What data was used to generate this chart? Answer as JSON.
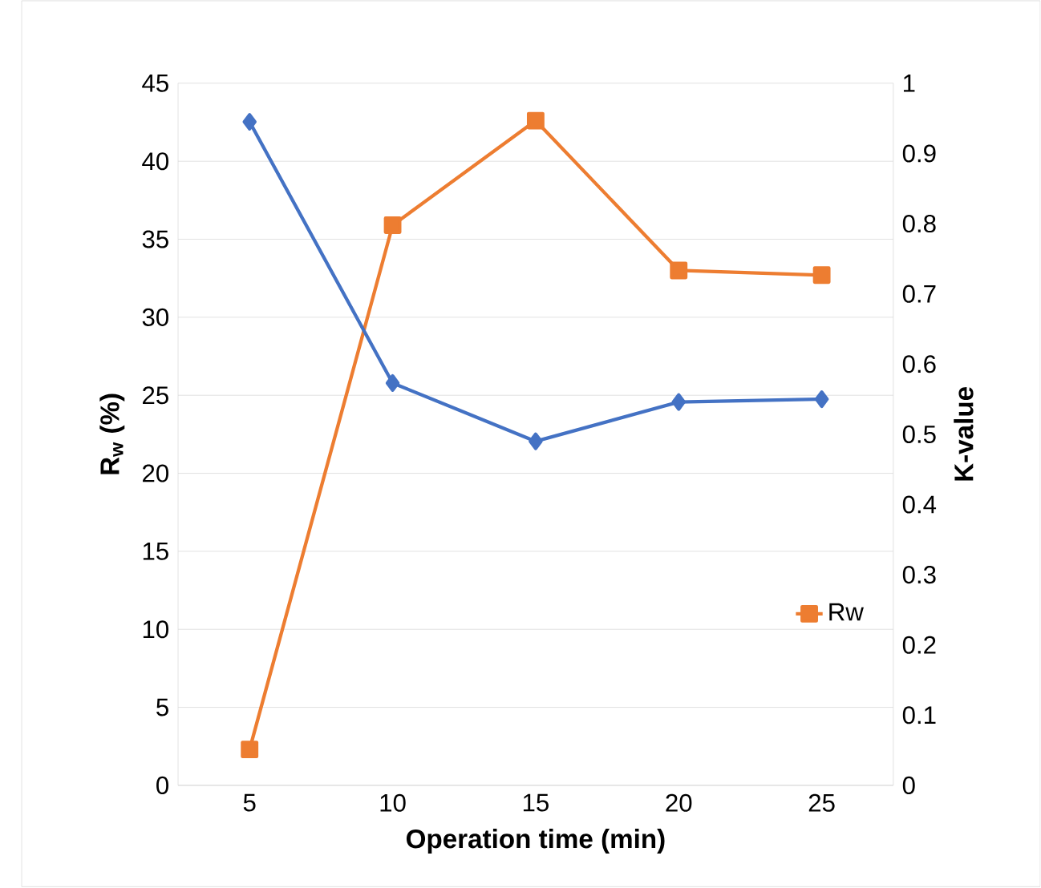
{
  "chart_data": {
    "type": "line",
    "xlabel": "Operation time (min)",
    "ylabel": "R$_{w}$ (%)",
    "y2label": "K-value",
    "categories": [
      "5",
      "10",
      "15",
      "20",
      "25"
    ],
    "series": [
      {
        "name": "Rw",
        "color": "#ed7d31",
        "marker": "square",
        "values": [
          2.3,
          35.9,
          42.6,
          33.0,
          32.7
        ]
      },
      {
        "color": "#4472c4",
        "marker": "diamond",
        "axis": "y2",
        "values": [
          0.945,
          0.573,
          0.49,
          0.546,
          0.55
        ]
      }
    ],
    "ylim": [
      0,
      45
    ],
    "yticks": [
      0,
      5,
      10,
      15,
      20,
      25,
      30,
      35,
      40,
      45
    ],
    "y2lim": [
      0,
      1
    ],
    "y2ticks": [
      0,
      0.1,
      0.2,
      0.3,
      0.4,
      0.5,
      0.6,
      0.7,
      0.8,
      0.9,
      1
    ],
    "grid": "y",
    "legend": "bottom right"
  }
}
